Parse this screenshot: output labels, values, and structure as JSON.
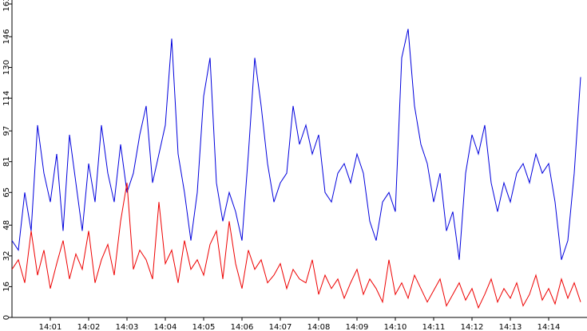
{
  "chart_data": {
    "type": "line",
    "x": [
      "14:00:00",
      "14:00:10",
      "14:00:20",
      "14:00:30",
      "14:00:40",
      "14:00:50",
      "14:01:00",
      "14:01:10",
      "14:01:20",
      "14:01:30",
      "14:01:40",
      "14:01:50",
      "14:02:00",
      "14:02:10",
      "14:02:20",
      "14:02:30",
      "14:02:40",
      "14:02:50",
      "14:03:00",
      "14:03:10",
      "14:03:20",
      "14:03:30",
      "14:03:40",
      "14:03:50",
      "14:04:00",
      "14:04:10",
      "14:04:20",
      "14:04:30",
      "14:04:40",
      "14:04:50",
      "14:05:00",
      "14:05:10",
      "14:05:20",
      "14:05:30",
      "14:05:40",
      "14:05:50",
      "14:06:00",
      "14:06:10",
      "14:06:20",
      "14:06:30",
      "14:06:40",
      "14:06:50",
      "14:07:00",
      "14:07:10",
      "14:07:20",
      "14:07:30",
      "14:07:40",
      "14:07:50",
      "14:08:00",
      "14:08:10",
      "14:08:20",
      "14:08:30",
      "14:08:40",
      "14:08:50",
      "14:09:00",
      "14:09:10",
      "14:09:20",
      "14:09:30",
      "14:09:40",
      "14:09:50",
      "14:10:00",
      "14:10:10",
      "14:10:20",
      "14:10:30",
      "14:10:40",
      "14:10:50",
      "14:11:00",
      "14:11:10",
      "14:11:20",
      "14:11:30",
      "14:11:40",
      "14:11:50",
      "14:12:00",
      "14:12:10",
      "14:12:20",
      "14:12:30",
      "14:12:40",
      "14:12:50",
      "14:13:00",
      "14:13:10",
      "14:13:20",
      "14:13:30",
      "14:13:40",
      "14:13:50",
      "14:14:00",
      "14:14:10",
      "14:14:20",
      "14:14:30",
      "14:14:40",
      "14:14:50"
    ],
    "series": [
      {
        "color": "#0000dd",
        "values": [
          40,
          35,
          65,
          45,
          100,
          75,
          60,
          85,
          45,
          95,
          70,
          45,
          80,
          60,
          100,
          75,
          60,
          90,
          65,
          75,
          95,
          110,
          70,
          85,
          100,
          145,
          85,
          65,
          40,
          65,
          115,
          135,
          70,
          50,
          65,
          55,
          40,
          85,
          135,
          110,
          80,
          60,
          70,
          75,
          110,
          90,
          100,
          85,
          95,
          65,
          60,
          75,
          80,
          70,
          85,
          75,
          50,
          40,
          60,
          65,
          55,
          135,
          150,
          110,
          90,
          80,
          60,
          75,
          45,
          55,
          30,
          75,
          95,
          85,
          100,
          70,
          55,
          70,
          60,
          75,
          80,
          70,
          85,
          75,
          80,
          60,
          30,
          40,
          75,
          125
        ]
      },
      {
        "color": "#ee0000",
        "values": [
          25,
          30,
          18,
          45,
          22,
          35,
          15,
          28,
          40,
          20,
          33,
          25,
          45,
          18,
          30,
          38,
          22,
          50,
          70,
          25,
          35,
          30,
          20,
          60,
          28,
          35,
          18,
          40,
          25,
          30,
          22,
          38,
          45,
          20,
          50,
          28,
          15,
          35,
          25,
          30,
          18,
          22,
          28,
          15,
          25,
          20,
          18,
          30,
          12,
          22,
          15,
          20,
          10,
          18,
          25,
          12,
          20,
          15,
          8,
          30,
          12,
          18,
          10,
          22,
          15,
          8,
          14,
          20,
          6,
          12,
          18,
          9,
          15,
          5,
          12,
          20,
          8,
          15,
          10,
          18,
          6,
          12,
          22,
          9,
          15,
          7,
          20,
          10,
          18,
          8
        ]
      }
    ],
    "xlim": [
      "14:00:00",
      "14:15:00"
    ],
    "xticks": [
      {
        "value": "14:01:00",
        "label": "14:01"
      },
      {
        "value": "14:02:00",
        "label": "14:02"
      },
      {
        "value": "14:03:00",
        "label": "14:03"
      },
      {
        "value": "14:04:00",
        "label": "14:04"
      },
      {
        "value": "14:05:00",
        "label": "14:05"
      },
      {
        "value": "14:06:00",
        "label": "14:06"
      },
      {
        "value": "14:07:00",
        "label": "14:07"
      },
      {
        "value": "14:08:00",
        "label": "14:08"
      },
      {
        "value": "14:09:00",
        "label": "14:09"
      },
      {
        "value": "14:10:00",
        "label": "14:10"
      },
      {
        "value": "14:11:00",
        "label": "14:11"
      },
      {
        "value": "14:12:00",
        "label": "14:12"
      },
      {
        "value": "14:13:00",
        "label": "14:13"
      },
      {
        "value": "14:14:00",
        "label": "14:14"
      }
    ],
    "ylim": [
      0,
      163
    ],
    "yticks": [
      0,
      16,
      32,
      48,
      65,
      81,
      97,
      114,
      130,
      146,
      163
    ]
  }
}
